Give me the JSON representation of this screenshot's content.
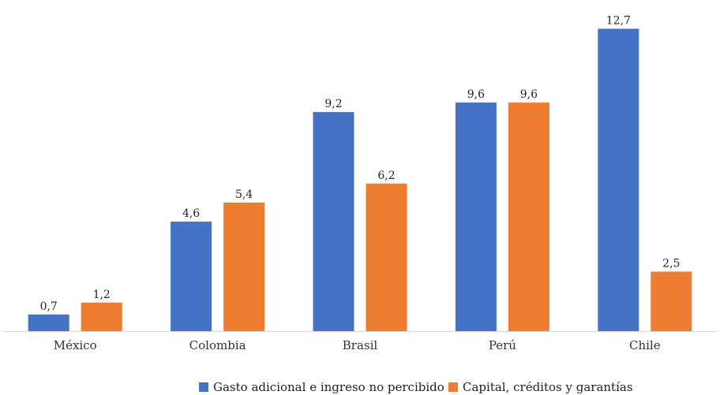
{
  "chart_data": {
    "type": "bar",
    "categories": [
      "México",
      "Colombia",
      "Brasil",
      "Perú",
      "Chile"
    ],
    "series": [
      {
        "name": "Gasto adicional e ingreso no percibido",
        "values": [
          0.7,
          4.6,
          9.2,
          9.6,
          12.7
        ],
        "labels": [
          "0,7",
          "4,6",
          "9,2",
          "9,6",
          "12,7"
        ],
        "color": "#4472c4"
      },
      {
        "name": "Capital, créditos y garantías",
        "values": [
          1.2,
          5.4,
          6.2,
          9.6,
          2.5
        ],
        "labels": [
          "1,2",
          "5,4",
          "6,2",
          "9,6",
          "2,5"
        ],
        "color": "#ed7d31"
      }
    ],
    "ylim": [
      0,
      13
    ],
    "grid": false,
    "legend_position": "bottom"
  }
}
